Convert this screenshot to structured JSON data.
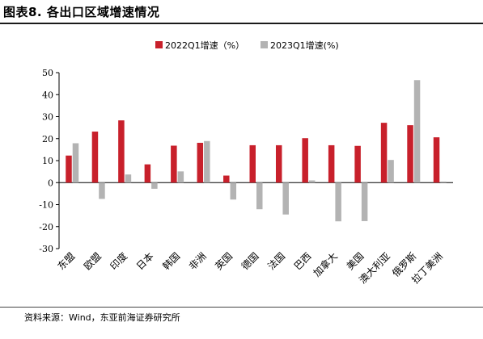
{
  "title": "图表8.    各出口区域增速情况",
  "source": "资料来源：Wind，东亚前海证券研究所",
  "colors": {
    "series1": "#c8202b",
    "series2": "#b3b3b3"
  },
  "chart_data": {
    "type": "bar",
    "categories": [
      "东盟",
      "欧盟",
      "印度",
      "日本",
      "韩国",
      "非洲",
      "英国",
      "德国",
      "法国",
      "巴西",
      "加拿大",
      "美国",
      "澳大利亚",
      "俄罗斯",
      "拉丁美洲"
    ],
    "series": [
      {
        "name": "2022Q1增速（%）",
        "values": [
          12.3,
          23.2,
          28.3,
          8.3,
          16.8,
          18.1,
          3.2,
          17.0,
          17.0,
          20.2,
          17.0,
          16.7,
          27.2,
          26.1,
          20.6
        ]
      },
      {
        "name": "2023Q1增速(%)",
        "values": [
          17.9,
          -7.4,
          3.7,
          -2.8,
          5.1,
          18.9,
          -7.7,
          -12.1,
          -14.5,
          1.0,
          -17.6,
          -17.5,
          10.3,
          46.6,
          0.5
        ]
      }
    ],
    "ylim": [
      -30,
      50
    ],
    "yticks": [
      -30,
      -20,
      -10,
      0,
      10,
      20,
      30,
      40,
      50
    ],
    "legend": "top-center",
    "grid": false
  }
}
